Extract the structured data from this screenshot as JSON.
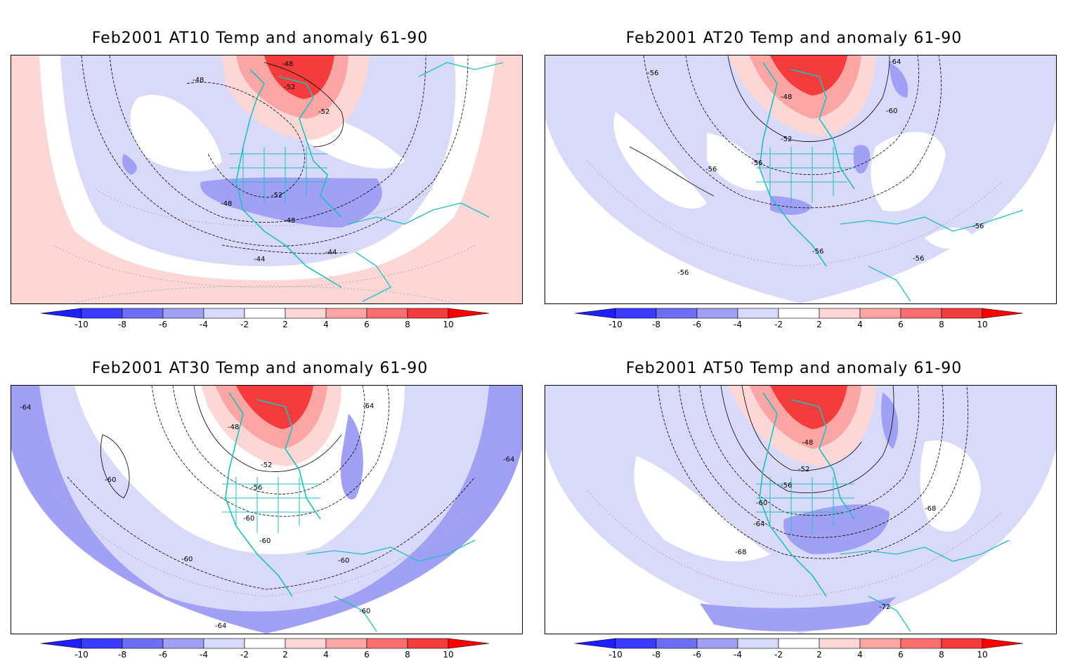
{
  "panels": [
    {
      "title": "Feb2001 AT10 Temp and anomaly 61-90",
      "contour_labels": [
        "-48",
        "-48",
        "-52",
        "-52",
        "-52",
        "-48",
        "-48",
        "-44",
        "-44"
      ]
    },
    {
      "title": "Feb2001 AT20 Temp and anomaly 61-90",
      "contour_labels": [
        "-64",
        "-56",
        "-48",
        "-60",
        "-52",
        "-56",
        "-56",
        "-56",
        "-56",
        "-56"
      ]
    },
    {
      "title": "Feb2001 AT30 Temp and anomaly 61-90",
      "contour_labels": [
        "-64",
        "-64",
        "-48",
        "-52",
        "-56",
        "-60",
        "-60",
        "-60",
        "-60",
        "-60",
        "-64",
        "-60",
        "-64"
      ]
    },
    {
      "title": "Feb2001 AT50 Temp and anomaly 61-90",
      "contour_labels": [
        "-48",
        "-52",
        "-56",
        "-60",
        "-64",
        "-68",
        "-68",
        "-72"
      ]
    }
  ],
  "colorbar": {
    "ticks": [
      "-10",
      "-8",
      "-6",
      "-4",
      "-2",
      "2",
      "4",
      "6",
      "8",
      "10"
    ],
    "colors": [
      "#1e1eff",
      "#3c3cff",
      "#6e6ef5",
      "#a0a0f5",
      "#d9d9fa",
      "#ffffff",
      "#fdd6d6",
      "#fca5a5",
      "#fa6e6e",
      "#f53c3c",
      "#ff0000"
    ]
  },
  "colors": {
    "coast": "#20c0c0",
    "contour": "#000000"
  }
}
